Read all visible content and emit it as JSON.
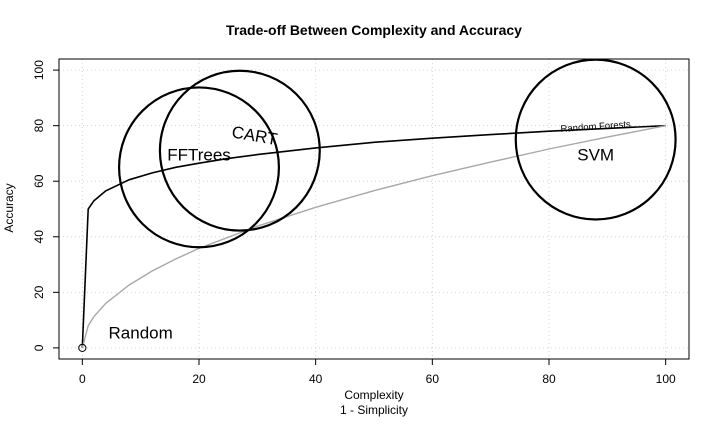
{
  "chart_data": {
    "type": "line",
    "title": "Trade-off Between Complexity and Accuracy",
    "xlabel": "Complexity",
    "xlabel2": "1 - Simplicity",
    "ylabel": "Accuracy",
    "xlim": [
      -4,
      104
    ],
    "ylim": [
      -4,
      104
    ],
    "xticks": [
      0,
      20,
      40,
      60,
      80,
      100
    ],
    "yticks": [
      0,
      20,
      40,
      60,
      80,
      100
    ],
    "grid": true,
    "series": [
      {
        "color": "#000000",
        "x": [
          0,
          1,
          2,
          4,
          8,
          12,
          16,
          20,
          25,
          30,
          40,
          50,
          60,
          70,
          80,
          90,
          100
        ],
        "y": [
          0,
          50,
          53,
          56.5,
          60.5,
          63,
          65,
          66.5,
          68.2,
          69.6,
          72,
          74,
          75.5,
          76.8,
          78,
          79,
          80
        ]
      },
      {
        "color": "#a8a8a8",
        "x": [
          0,
          1,
          2,
          4,
          8,
          12,
          16,
          20,
          30,
          40,
          50,
          60,
          70,
          80,
          90,
          100
        ],
        "y": [
          0,
          8,
          11.3,
          16,
          22.6,
          27.7,
          32,
          35.8,
          43.8,
          50.6,
          56.6,
          62,
          66.9,
          71.6,
          75.9,
          80
        ]
      }
    ],
    "points": [
      {
        "x": 0,
        "y": 0
      }
    ],
    "circles": [
      {
        "x": 27,
        "y": 71,
        "r": 13.7,
        "label": "CART",
        "label_x": 29.5,
        "label_y": 76,
        "label_rotate": 10,
        "stroke": "#000000"
      },
      {
        "x": 20,
        "y": 65,
        "r": 13.7,
        "label": "FFTrees",
        "label_x": 20,
        "label_y": 69,
        "label_rotate": 0,
        "stroke": "#000000"
      },
      {
        "x": 88,
        "y": 75,
        "r": 13.7,
        "label": "SVM",
        "label_x": 88,
        "label_y": 69,
        "label_rotate": 0,
        "stroke": "#000000"
      }
    ],
    "annotations": [
      {
        "text": "Random Forests",
        "x": 88,
        "y": 79.5,
        "rotate": -4,
        "size": "small"
      },
      {
        "text": "Random",
        "x": 10,
        "y": 5,
        "rotate": 0,
        "size": "note"
      }
    ]
  }
}
